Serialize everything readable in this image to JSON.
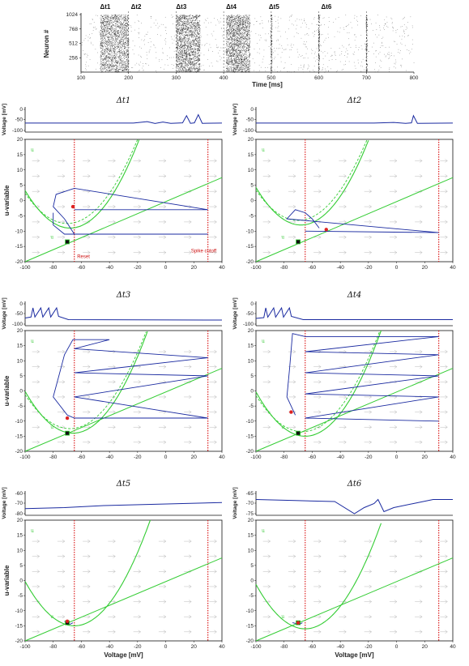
{
  "raster": {
    "type": "scatter",
    "ylabel": "Neuron #",
    "xlabel": "Time [ms]",
    "xticks": [
      100,
      200,
      300,
      400,
      500,
      600,
      700,
      800
    ],
    "yticks": [
      256,
      512,
      768,
      1024
    ],
    "xlim": [
      100,
      800
    ],
    "ylim": [
      0,
      1024
    ],
    "window_labels": [
      "Δt1",
      "Δt2",
      "Δt3",
      "Δt4",
      "Δt5",
      "Δt6"
    ],
    "window_times": [
      140,
      205,
      300,
      405,
      495,
      605
    ],
    "boundaries": [
      200,
      300,
      400,
      500,
      600,
      700
    ],
    "bursts": [
      [
        140,
        200,
        1.0
      ],
      [
        300,
        350,
        1.0
      ],
      [
        405,
        455,
        1.0
      ]
    ],
    "synchronous_lines": [
      500,
      600,
      700
    ],
    "colors": {
      "dots": "#111111",
      "dashed": "#555555"
    }
  },
  "panels": [
    {
      "title": "Δt1",
      "voltage_ylabel": "Voltage [mV]",
      "voltage_yticks": [
        "0",
        "-50",
        "-100"
      ],
      "voltage_trace": [
        [
          0,
          -65
        ],
        [
          0.55,
          -65
        ],
        [
          0.62,
          -58
        ],
        [
          0.66,
          -67
        ],
        [
          0.7,
          -60
        ],
        [
          0.74,
          -66
        ],
        [
          0.8,
          -64
        ],
        [
          0.82,
          -30
        ],
        [
          0.84,
          -66
        ],
        [
          0.86,
          -64
        ],
        [
          0.88,
          -25
        ],
        [
          0.9,
          -66
        ],
        [
          1,
          -65
        ]
      ],
      "ylabel": "u-variable",
      "yticks": [
        "20",
        "15",
        "10",
        "5",
        "0",
        "-5",
        "-10",
        "-15",
        "-20"
      ],
      "xticks": [
        "-100",
        "-80",
        "-60",
        "-40",
        "-20",
        "0",
        "20",
        "40"
      ],
      "xlabel": "",
      "nullcline_label": "u",
      "annotations": [
        "Reset",
        "Spike cutoff"
      ]
    },
    {
      "title": "Δt2",
      "voltage_ylabel": "Voltage [mV]",
      "voltage_yticks": [
        "0",
        "-50",
        "-100"
      ],
      "voltage_trace": [
        [
          0,
          -65
        ],
        [
          0.6,
          -65
        ],
        [
          0.7,
          -62
        ],
        [
          0.76,
          -66
        ],
        [
          0.79,
          -64
        ],
        [
          0.8,
          -30
        ],
        [
          0.82,
          -66
        ],
        [
          1,
          -65
        ]
      ],
      "ylabel": "",
      "yticks": [
        "20",
        "15",
        "10",
        "5",
        "0",
        "-5",
        "-10",
        "-15",
        "-20"
      ],
      "xticks": [
        "-100",
        "-80",
        "-60",
        "-40",
        "-20",
        "0",
        "20",
        "40"
      ],
      "xlabel": "",
      "nullcline_label": "u",
      "annotations": []
    },
    {
      "title": "Δt3",
      "voltage_ylabel": "Voltage [mV]",
      "voltage_yticks": [
        "0",
        "-50",
        "-100"
      ],
      "voltage_trace": [
        [
          0,
          -70
        ],
        [
          0.03,
          -65
        ],
        [
          0.04,
          -20
        ],
        [
          0.05,
          -65
        ],
        [
          0.08,
          -20
        ],
        [
          0.09,
          -65
        ],
        [
          0.12,
          -20
        ],
        [
          0.13,
          -65
        ],
        [
          0.16,
          -20
        ],
        [
          0.17,
          -62
        ],
        [
          0.22,
          -78
        ],
        [
          1,
          -80
        ]
      ],
      "ylabel": "u-variable",
      "yticks": [
        "20",
        "15",
        "10",
        "5",
        "0",
        "-5",
        "-10",
        "-15",
        "-20"
      ],
      "xticks": [
        "-100",
        "-80",
        "-60",
        "-40",
        "-20",
        "0",
        "20",
        "40"
      ],
      "xlabel": "",
      "nullcline_label": "u",
      "annotations": []
    },
    {
      "title": "Δt4",
      "voltage_ylabel": "Voltage [mV]",
      "voltage_yticks": [
        "0",
        "-50",
        "-100"
      ],
      "voltage_trace": [
        [
          0,
          -72
        ],
        [
          0.04,
          -68
        ],
        [
          0.05,
          -20
        ],
        [
          0.06,
          -66
        ],
        [
          0.09,
          -20
        ],
        [
          0.1,
          -66
        ],
        [
          0.13,
          -20
        ],
        [
          0.14,
          -66
        ],
        [
          0.17,
          -20
        ],
        [
          0.18,
          -62
        ],
        [
          0.24,
          -78
        ],
        [
          1,
          -78
        ]
      ],
      "ylabel": "",
      "yticks": [
        "20",
        "15",
        "10",
        "5",
        "0",
        "-5",
        "-10",
        "-15",
        "-20"
      ],
      "xticks": [
        "-100",
        "-80",
        "-60",
        "-40",
        "-20",
        "0",
        "20",
        "40"
      ],
      "xlabel": "",
      "nullcline_label": "u",
      "annotations": []
    },
    {
      "title": "Δt5",
      "voltage_ylabel": "Voltage [mV]",
      "voltage_yticks": [
        "-60",
        "-70",
        "-80"
      ],
      "voltage_trace": [
        [
          0,
          -75
        ],
        [
          0.2,
          -74
        ],
        [
          0.4,
          -72
        ],
        [
          0.6,
          -71
        ],
        [
          0.8,
          -70
        ],
        [
          1,
          -69
        ]
      ],
      "ylabel": "u-variable",
      "yticks": [
        "20",
        "15",
        "10",
        "5",
        "0",
        "-5",
        "-10",
        "-15",
        "-20"
      ],
      "xticks": [
        "-100",
        "-80",
        "-60",
        "-40",
        "-20",
        "0",
        "20",
        "40"
      ],
      "xlabel": "Voltage [mV]",
      "nullcline_label": "u",
      "annotations": []
    },
    {
      "title": "Δt6",
      "voltage_ylabel": "Voltage [mV]",
      "voltage_yticks": [
        "-65",
        "-70",
        "-75"
      ],
      "voltage_trace": [
        [
          0,
          -68
        ],
        [
          0.2,
          -68.5
        ],
        [
          0.4,
          -69
        ],
        [
          0.5,
          -75
        ],
        [
          0.55,
          -72
        ],
        [
          0.6,
          -70
        ],
        [
          0.62,
          -68
        ],
        [
          0.65,
          -74
        ],
        [
          0.7,
          -72
        ],
        [
          0.8,
          -70
        ],
        [
          0.9,
          -68
        ],
        [
          1,
          -68
        ]
      ],
      "ylabel": "",
      "yticks": [
        "20",
        "15",
        "10",
        "5",
        "0",
        "-5",
        "-10",
        "-15",
        "-20"
      ],
      "xticks": [
        "-100",
        "-80",
        "-60",
        "-40",
        "-20",
        "0",
        "20",
        "40"
      ],
      "xlabel": "Voltage [mV]",
      "nullcline_label": "u",
      "annotations": []
    }
  ],
  "colors": {
    "trajectory": "#1a2aa0",
    "nullcline": "#33cc33",
    "reset": "#dd2222",
    "fixed_point": "#111111",
    "arrows": "#bbbbbb"
  }
}
